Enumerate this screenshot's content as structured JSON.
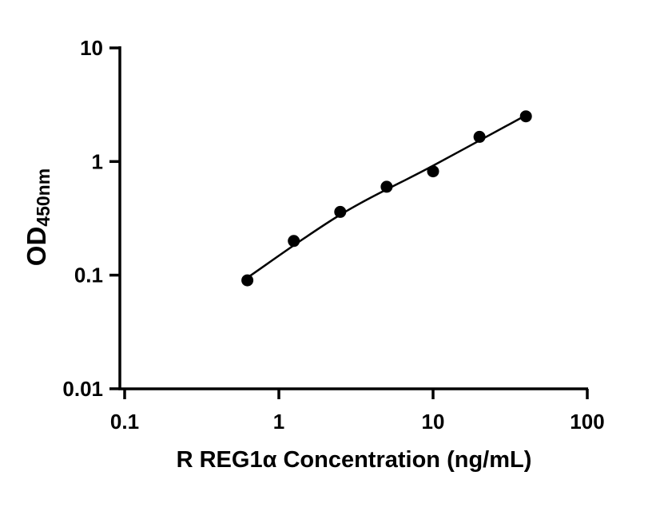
{
  "figure": {
    "background": "#ffffff"
  },
  "chart_data": {
    "type": "scatter",
    "title": "",
    "xlabel": "R REG1α Concentration (ng/mL)",
    "ylabel_main": "OD",
    "ylabel_sub": "450nm",
    "x_scale": "log",
    "y_scale": "log",
    "xlim": [
      0.1,
      100
    ],
    "ylim": [
      0.01,
      10
    ],
    "grid": false,
    "legend": "none",
    "axis_color": "#000000",
    "marker_color": "#000000",
    "line_color": "#000000",
    "x_ticks": [
      {
        "value": 0.1,
        "label": "0.1"
      },
      {
        "value": 1,
        "label": "1"
      },
      {
        "value": 10,
        "label": "10"
      },
      {
        "value": 100,
        "label": "100"
      }
    ],
    "y_ticks": [
      {
        "value": 0.01,
        "label": "0.01"
      },
      {
        "value": 0.1,
        "label": "0.1"
      },
      {
        "value": 1,
        "label": "1"
      },
      {
        "value": 10,
        "label": "10"
      }
    ],
    "points": {
      "x": [
        0.625,
        1.25,
        2.5,
        5,
        10,
        20,
        40
      ],
      "y": [
        0.09,
        0.2,
        0.36,
        0.6,
        0.82,
        1.65,
        2.5
      ]
    },
    "trend_line": {
      "points": [
        [
          0.625,
          0.095
        ],
        [
          2.5,
          0.34
        ],
        [
          10,
          0.92
        ],
        [
          40,
          2.55
        ]
      ]
    }
  }
}
